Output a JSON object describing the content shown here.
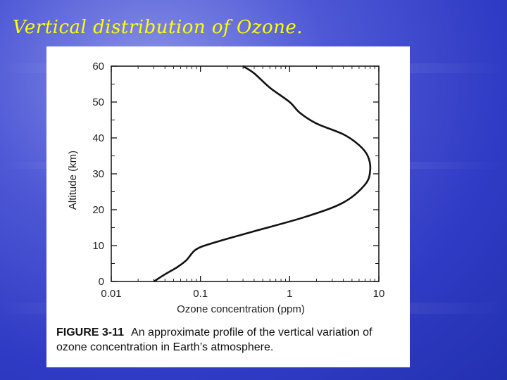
{
  "slide": {
    "title": "Vertical distribution of Ozone."
  },
  "figure": {
    "caption_label": "FIGURE 3-11",
    "caption_text": "An approximate profile of the vertical variation of ozone concentration in Earth’s atmosphere."
  },
  "colors": {
    "title": "#ffff00",
    "background": "#3340c8",
    "panel": "#ffffff",
    "line": "#111111"
  },
  "chart_data": {
    "type": "line",
    "title": "",
    "xlabel": "Ozone concentration (ppm)",
    "ylabel": "Altitude (km)",
    "xscale": "log",
    "xlim": [
      0.01,
      10
    ],
    "ylim": [
      0,
      60
    ],
    "xticks": [
      {
        "value": 0.01,
        "label": "0.01"
      },
      {
        "value": 0.1,
        "label": "0.1"
      },
      {
        "value": 1,
        "label": "1"
      },
      {
        "value": 10,
        "label": "10"
      }
    ],
    "yticks": [
      {
        "value": 0,
        "label": "0"
      },
      {
        "value": 10,
        "label": "10"
      },
      {
        "value": 20,
        "label": "20"
      },
      {
        "value": 30,
        "label": "30"
      },
      {
        "value": 40,
        "label": "40"
      },
      {
        "value": 50,
        "label": "50"
      },
      {
        "value": 60,
        "label": "60"
      }
    ],
    "grid": false,
    "series": [
      {
        "name": "",
        "x": [
          0.03,
          0.04,
          0.055,
          0.07,
          0.09,
          0.15,
          0.4,
          1.5,
          4,
          7,
          8,
          7.5,
          6,
          4,
          2,
          1.3,
          1,
          0.6,
          0.4,
          0.3
        ],
        "y": [
          0,
          2,
          4,
          6,
          9,
          11,
          14,
          18,
          22,
          27,
          31,
          35,
          38,
          41,
          44,
          47,
          50,
          54,
          58,
          60
        ]
      }
    ]
  }
}
